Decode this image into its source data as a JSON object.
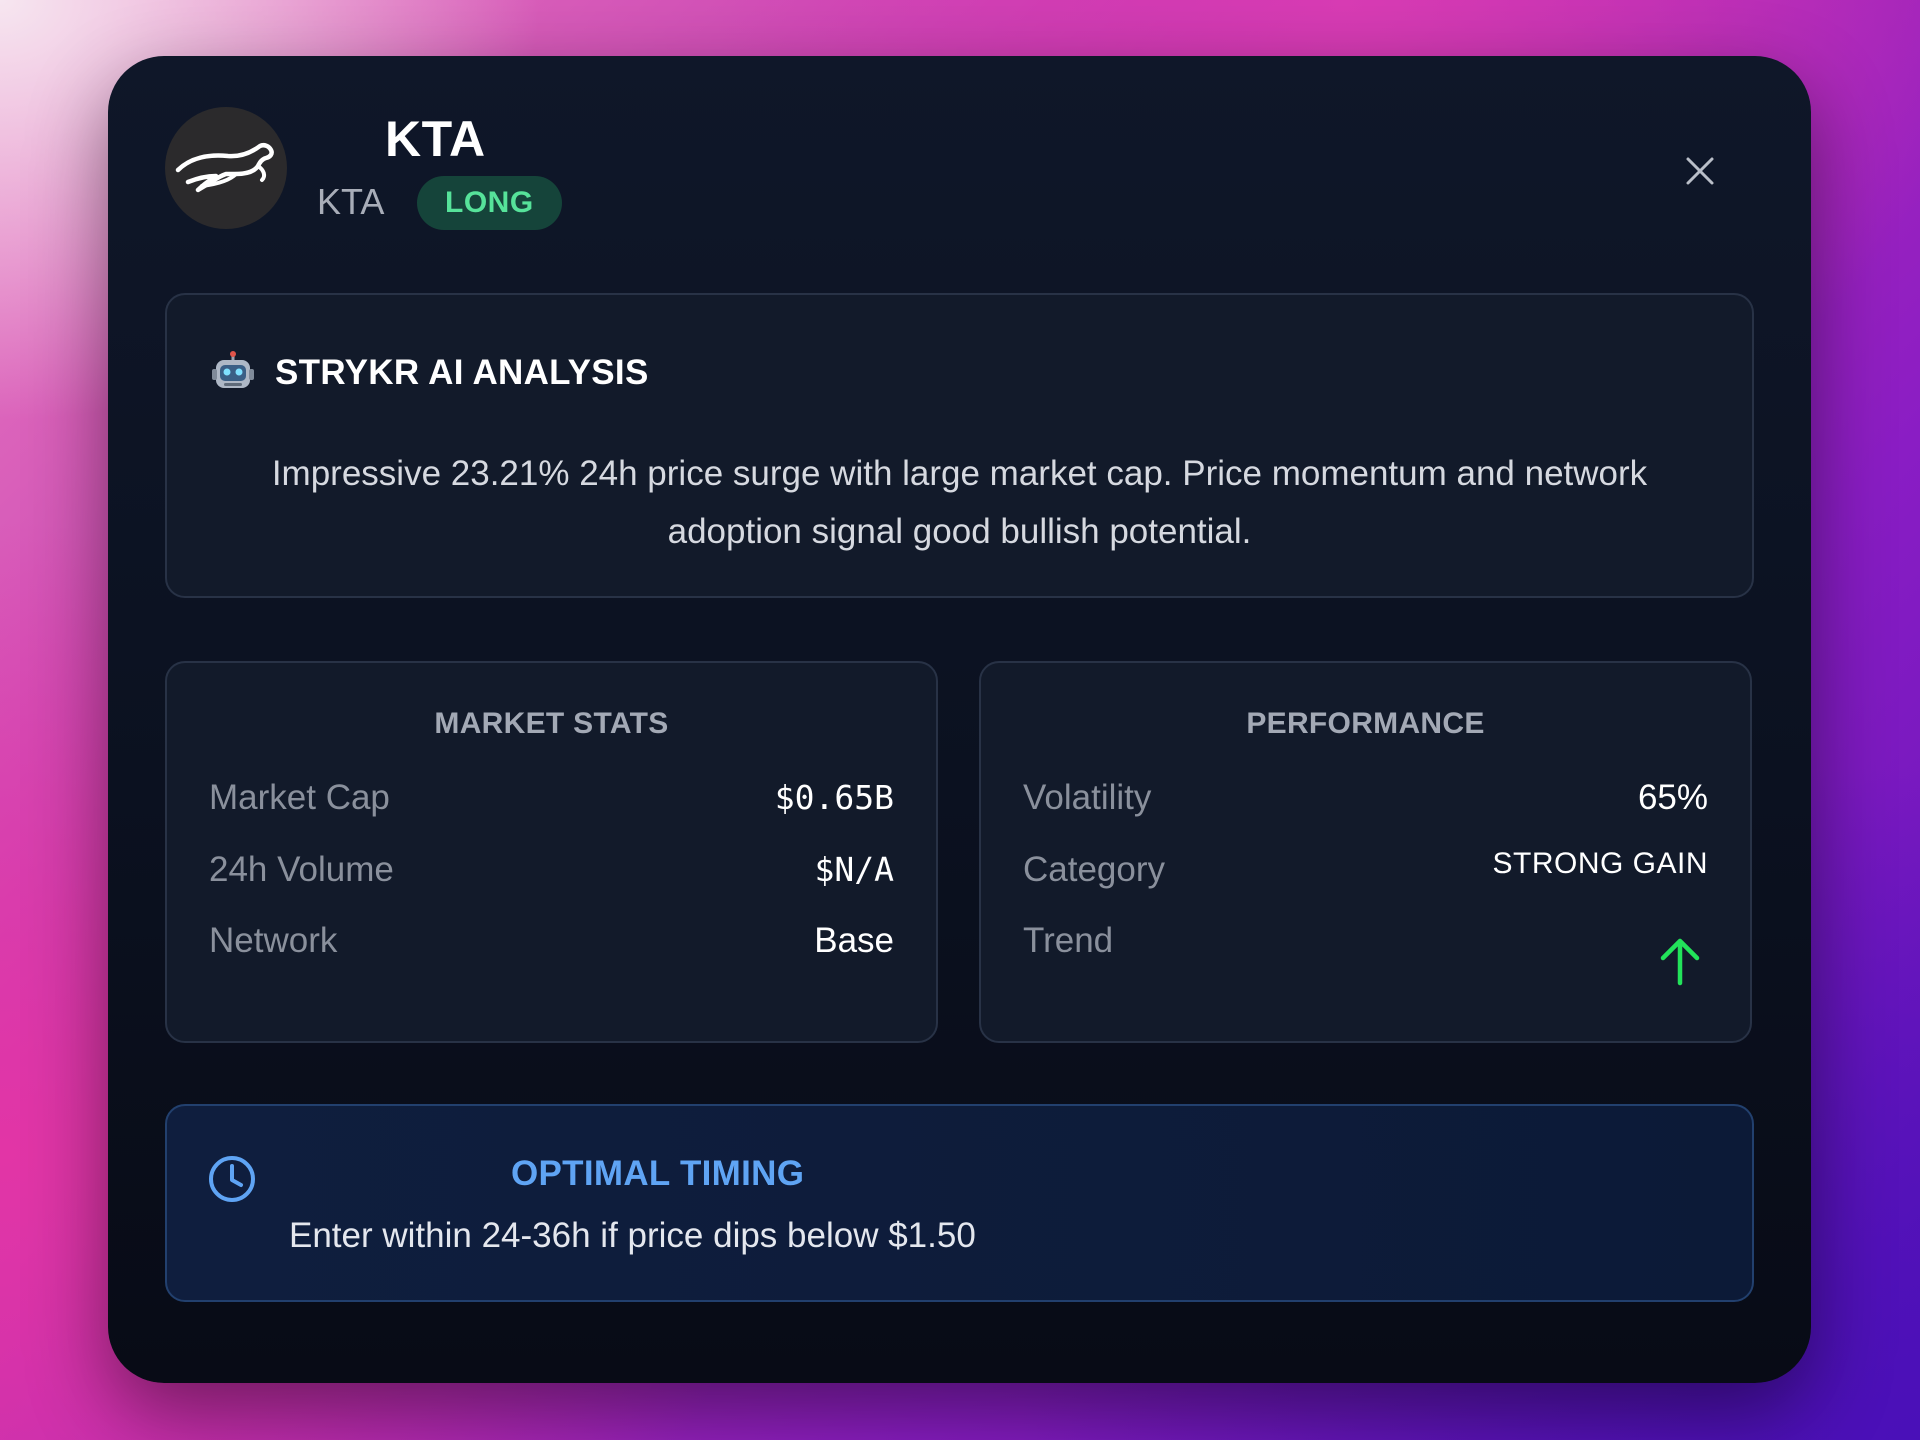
{
  "header": {
    "title": "KTA",
    "symbol": "KTA",
    "badge": "LONG",
    "avatar_icon": "running-animal-logo",
    "close_icon": "close-icon"
  },
  "analysis": {
    "icon": "robot-icon",
    "heading": "STRYKR AI ANALYSIS",
    "body": "Impressive 23.21% 24h price surge with large market cap. Price momentum and network adoption signal good bullish potential."
  },
  "market_stats": {
    "title": "MARKET STATS",
    "rows": [
      {
        "label": "Market Cap",
        "value": "$0.65B"
      },
      {
        "label": "24h Volume",
        "value": "$N/A"
      },
      {
        "label": "Network",
        "value": "Base"
      }
    ]
  },
  "performance": {
    "title": "PERFORMANCE",
    "rows": [
      {
        "label": "Volatility",
        "value": "65%"
      },
      {
        "label": "Category",
        "value": "STRONG GAIN"
      },
      {
        "label": "Trend",
        "icon": "arrow-up-icon"
      }
    ]
  },
  "timing": {
    "icon": "clock-icon",
    "title": "OPTIMAL TIMING",
    "body": "Enter within 24-36h if price dips below $1.50"
  },
  "colors": {
    "badge_text": "#56e39a",
    "badge_bg": "#15443a",
    "trend_up": "#22e35a",
    "timing_accent": "#5fa4f4"
  }
}
